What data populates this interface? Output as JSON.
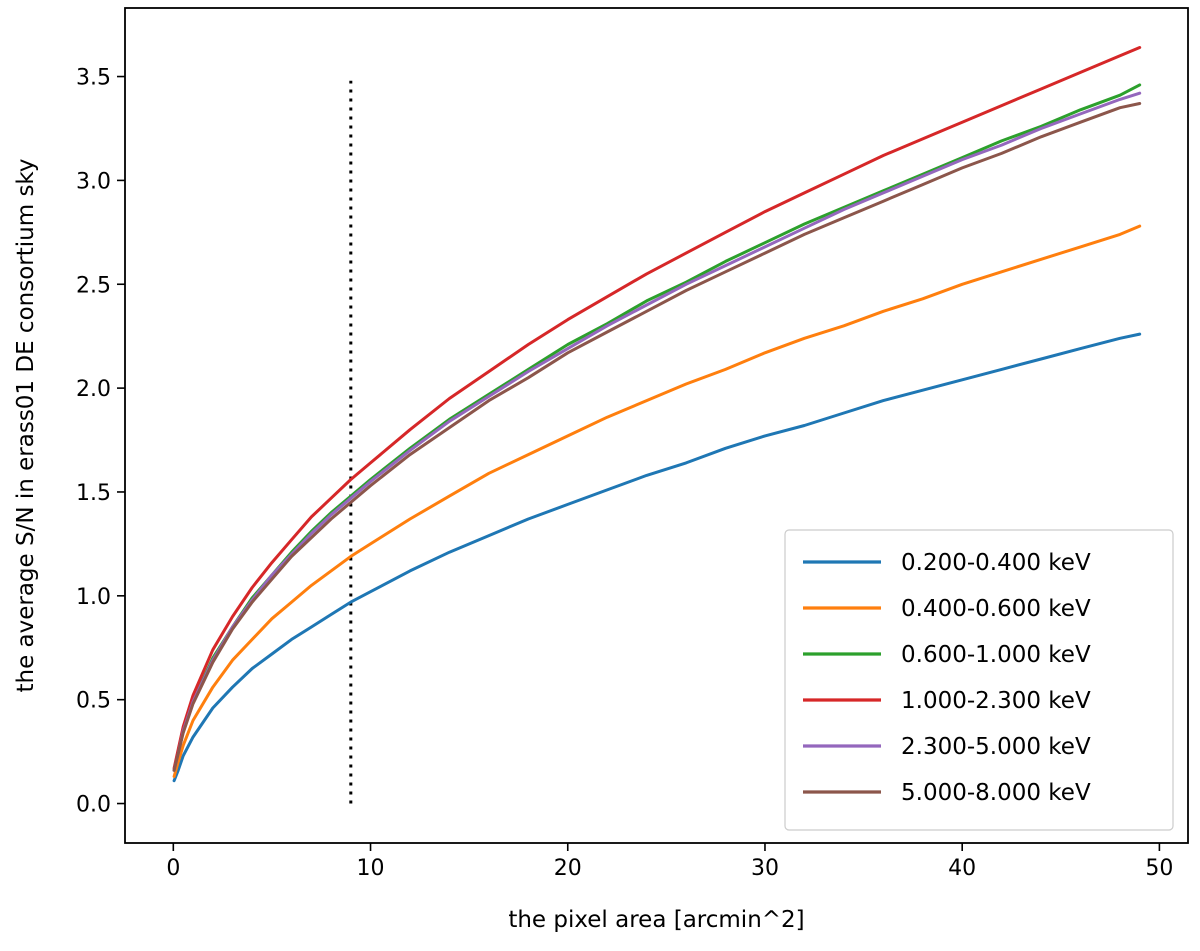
{
  "chart_data": {
    "type": "line",
    "xlabel": "the pixel area [arcmin^2]",
    "ylabel": "the average S/N in erass01 DE consortium sky",
    "xlim": [
      -2.45,
      51.45
    ],
    "ylim": [
      -0.19,
      3.83
    ],
    "xticks": [
      0,
      10,
      20,
      30,
      40,
      50
    ],
    "xtick_labels": [
      "0",
      "10",
      "20",
      "30",
      "40",
      "50"
    ],
    "yticks": [
      0.0,
      0.5,
      1.0,
      1.5,
      2.0,
      2.5,
      3.0,
      3.5
    ],
    "ytick_labels": [
      "0.0",
      "0.5",
      "1.0",
      "1.5",
      "2.0",
      "2.5",
      "3.0",
      "3.5"
    ],
    "grid": false,
    "legend_position": "lower-right",
    "x": [
      0.04,
      0.25,
      0.5,
      1,
      2,
      3,
      4,
      5,
      6,
      7,
      8,
      9,
      10,
      12,
      14,
      16,
      18,
      20,
      22,
      24,
      26,
      28,
      30,
      32,
      34,
      36,
      38,
      40,
      42,
      44,
      46,
      48,
      49
    ],
    "series": [
      {
        "name": "0.200-0.400 keV",
        "color": "#1f77b4",
        "values": [
          0.11,
          0.16,
          0.23,
          0.32,
          0.46,
          0.56,
          0.65,
          0.72,
          0.79,
          0.85,
          0.91,
          0.97,
          1.02,
          1.12,
          1.21,
          1.29,
          1.37,
          1.44,
          1.51,
          1.58,
          1.64,
          1.71,
          1.77,
          1.82,
          1.88,
          1.94,
          1.99,
          2.04,
          2.09,
          2.14,
          2.19,
          2.24,
          2.26
        ]
      },
      {
        "name": "0.400-0.600 keV",
        "color": "#ff7f0e",
        "values": [
          0.13,
          0.2,
          0.28,
          0.4,
          0.56,
          0.69,
          0.79,
          0.89,
          0.97,
          1.05,
          1.12,
          1.19,
          1.25,
          1.37,
          1.48,
          1.59,
          1.68,
          1.77,
          1.86,
          1.94,
          2.02,
          2.09,
          2.17,
          2.24,
          2.3,
          2.37,
          2.43,
          2.5,
          2.56,
          2.62,
          2.68,
          2.74,
          2.78
        ]
      },
      {
        "name": "0.600-1.000 keV",
        "color": "#2ca02c",
        "values": [
          0.16,
          0.25,
          0.35,
          0.49,
          0.7,
          0.85,
          0.99,
          1.1,
          1.21,
          1.31,
          1.4,
          1.48,
          1.56,
          1.71,
          1.85,
          1.97,
          2.09,
          2.21,
          2.31,
          2.42,
          2.51,
          2.61,
          2.7,
          2.79,
          2.87,
          2.95,
          3.03,
          3.11,
          3.19,
          3.26,
          3.34,
          3.41,
          3.46
        ]
      },
      {
        "name": "1.000-2.300 keV",
        "color": "#d62728",
        "values": [
          0.17,
          0.26,
          0.37,
          0.52,
          0.74,
          0.9,
          1.04,
          1.16,
          1.27,
          1.38,
          1.47,
          1.56,
          1.64,
          1.8,
          1.95,
          2.08,
          2.21,
          2.33,
          2.44,
          2.55,
          2.65,
          2.75,
          2.85,
          2.94,
          3.03,
          3.12,
          3.2,
          3.28,
          3.36,
          3.44,
          3.52,
          3.6,
          3.64
        ]
      },
      {
        "name": "2.300-5.000 keV",
        "color": "#9467bd",
        "values": [
          0.16,
          0.24,
          0.35,
          0.49,
          0.69,
          0.85,
          0.98,
          1.1,
          1.2,
          1.3,
          1.39,
          1.47,
          1.55,
          1.7,
          1.84,
          1.96,
          2.08,
          2.19,
          2.3,
          2.4,
          2.5,
          2.59,
          2.68,
          2.77,
          2.86,
          2.94,
          3.02,
          3.1,
          3.17,
          3.25,
          3.32,
          3.39,
          3.42
        ]
      },
      {
        "name": "5.000-8.000 keV",
        "color": "#8c564b",
        "values": [
          0.16,
          0.24,
          0.34,
          0.48,
          0.68,
          0.84,
          0.97,
          1.08,
          1.19,
          1.28,
          1.37,
          1.45,
          1.53,
          1.68,
          1.81,
          1.94,
          2.05,
          2.17,
          2.27,
          2.37,
          2.47,
          2.56,
          2.65,
          2.74,
          2.82,
          2.9,
          2.98,
          3.06,
          3.13,
          3.21,
          3.28,
          3.35,
          3.37
        ]
      }
    ],
    "reference_line": {
      "orientation": "vertical",
      "style": "dotted",
      "color": "#000000",
      "x": 9,
      "y_range": [
        0.0,
        3.48
      ]
    }
  }
}
